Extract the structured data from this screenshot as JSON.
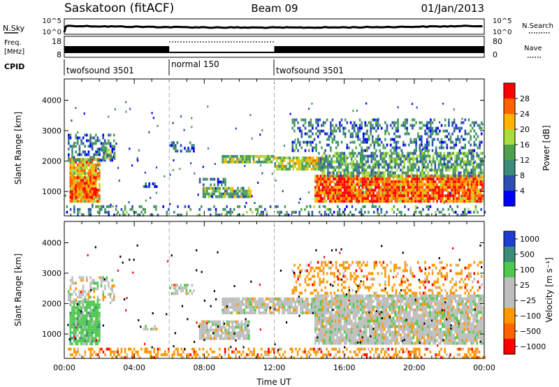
{
  "header": {
    "title_left": "Saskatoon (fitACF)",
    "title_center": "Beam 09",
    "title_right": "01/Jan/2013"
  },
  "status_panels": {
    "nsky_label": "N.Sky",
    "nsky_ticks": [
      "10^5",
      "10^0"
    ],
    "nsearch_label": "N.Search",
    "nsearch_ticks": [
      "10^5",
      "10^0"
    ],
    "freq_label_1": "Freq.",
    "freq_label_2": "[MHz]",
    "freq_ticks": [
      "18",
      "8"
    ],
    "nave_label": "Nave",
    "nave_ticks": [
      "80",
      "0"
    ],
    "cpid_label": "CPID",
    "cpid_segments": [
      {
        "label": "twofsound 3501",
        "start_h": 0,
        "end_h": 6
      },
      {
        "label": "normal 150",
        "start_h": 6,
        "end_h": 12
      },
      {
        "label": "twofsound 3501",
        "start_h": 12,
        "end_h": 24
      }
    ]
  },
  "colors": {
    "power_scale": [
      "#0000ff",
      "#2d4fb4",
      "#3c8c78",
      "#50a050",
      "#aadc3c",
      "#ffb400",
      "#ff6400",
      "#ff0000"
    ],
    "velocity_scale": [
      "#1e3cd2",
      "#3c8c78",
      "#50c850",
      "#bebebe",
      "#bebebe",
      "#ff9600",
      "#ff6400",
      "#ff0000"
    ]
  },
  "chart_data": [
    {
      "type": "heatmap",
      "panel": "power",
      "ylabel": "Slant Range [km]",
      "yticks": [
        "1000",
        "2000",
        "3000",
        "4000"
      ],
      "ylim": [
        200,
        4700
      ],
      "colorbar_label": "Power [dB]",
      "colorbar_ticks": [
        "4",
        "8",
        "12",
        "16",
        "20",
        "24",
        "28"
      ],
      "colorbar_range": [
        0,
        32
      ],
      "regions": [
        {
          "t0": 0.3,
          "t1": 2.0,
          "r0": 700,
          "r1": 2100,
          "v": 22,
          "density": 0.9
        },
        {
          "t0": 0.3,
          "t1": 1.8,
          "r0": 800,
          "r1": 1500,
          "v": 26,
          "density": 0.95
        },
        {
          "t0": 0.2,
          "t1": 2.8,
          "r0": 2000,
          "r1": 2900,
          "v": 9,
          "density": 0.5
        },
        {
          "t0": 2.1,
          "t1": 2.9,
          "r0": 2100,
          "r1": 2500,
          "v": 14,
          "density": 0.6
        },
        {
          "t0": 4.5,
          "t1": 5.3,
          "r0": 1150,
          "r1": 1300,
          "v": 8,
          "density": 0.5
        },
        {
          "t0": 6.0,
          "t1": 7.4,
          "r0": 2350,
          "r1": 2650,
          "v": 6,
          "density": 0.5
        },
        {
          "t0": 7.7,
          "t1": 9.2,
          "r0": 1200,
          "r1": 1450,
          "v": 8,
          "density": 0.55
        },
        {
          "t0": 7.9,
          "t1": 10.6,
          "r0": 850,
          "r1": 1150,
          "v": 14,
          "density": 0.85
        },
        {
          "t0": 9.0,
          "t1": 12.0,
          "r0": 1950,
          "r1": 2200,
          "v": 15,
          "density": 0.85
        },
        {
          "t0": 12.0,
          "t1": 15.0,
          "r0": 1700,
          "r1": 2150,
          "v": 18,
          "density": 0.85
        },
        {
          "t0": 14.3,
          "t1": 23.9,
          "r0": 650,
          "r1": 1550,
          "v": 26,
          "density": 0.95
        },
        {
          "t0": 14.5,
          "t1": 23.9,
          "r0": 1500,
          "r1": 2300,
          "v": 13,
          "density": 0.7
        },
        {
          "t0": 13.0,
          "t1": 23.9,
          "r0": 2300,
          "r1": 3400,
          "v": 9,
          "density": 0.35
        },
        {
          "t0": 0.0,
          "t1": 24.0,
          "r0": 250,
          "r1": 550,
          "v": 10,
          "density": 0.3
        }
      ]
    },
    {
      "type": "heatmap",
      "panel": "velocity",
      "ylabel": "Slant Range [km]",
      "xlabel": "Time UT",
      "yticks": [
        "1000",
        "2000",
        "3000",
        "4000"
      ],
      "ylim": [
        200,
        4700
      ],
      "xticks": [
        "00:00",
        "04:00",
        "08:00",
        "12:00",
        "16:00",
        "20:00",
        "00:00"
      ],
      "xlim": [
        0,
        24
      ],
      "colorbar_label": "Velocity [m s⁻¹]",
      "colorbar_ticks": [
        "1000",
        "500",
        "100",
        "25",
        "−25",
        "−100",
        "−500",
        "−1000"
      ],
      "regions": [
        {
          "t0": 0.3,
          "t1": 2.0,
          "r0": 700,
          "r1": 2100,
          "v": 2,
          "density": 0.85
        },
        {
          "t0": 0.2,
          "t1": 2.8,
          "r0": 2000,
          "r1": 2900,
          "v": 3,
          "density": 0.45
        },
        {
          "t0": 4.5,
          "t1": 5.3,
          "r0": 1150,
          "r1": 1300,
          "v": 3,
          "density": 0.5
        },
        {
          "t0": 6.0,
          "t1": 7.4,
          "r0": 2350,
          "r1": 2650,
          "v": 3,
          "density": 0.5
        },
        {
          "t0": 7.7,
          "t1": 10.6,
          "r0": 850,
          "r1": 1450,
          "v": 3,
          "density": 0.8
        },
        {
          "t0": 9.0,
          "t1": 15.0,
          "r0": 1700,
          "r1": 2200,
          "v": 3,
          "density": 0.85
        },
        {
          "t0": 14.3,
          "t1": 23.9,
          "r0": 650,
          "r1": 2300,
          "v": 3,
          "density": 0.9
        },
        {
          "t0": 13.0,
          "t1": 23.9,
          "r0": 2300,
          "r1": 3400,
          "v": 5,
          "density": 0.3
        },
        {
          "t0": 0.0,
          "t1": 24.0,
          "r0": 250,
          "r1": 550,
          "v": 5,
          "density": 0.35
        }
      ]
    }
  ]
}
